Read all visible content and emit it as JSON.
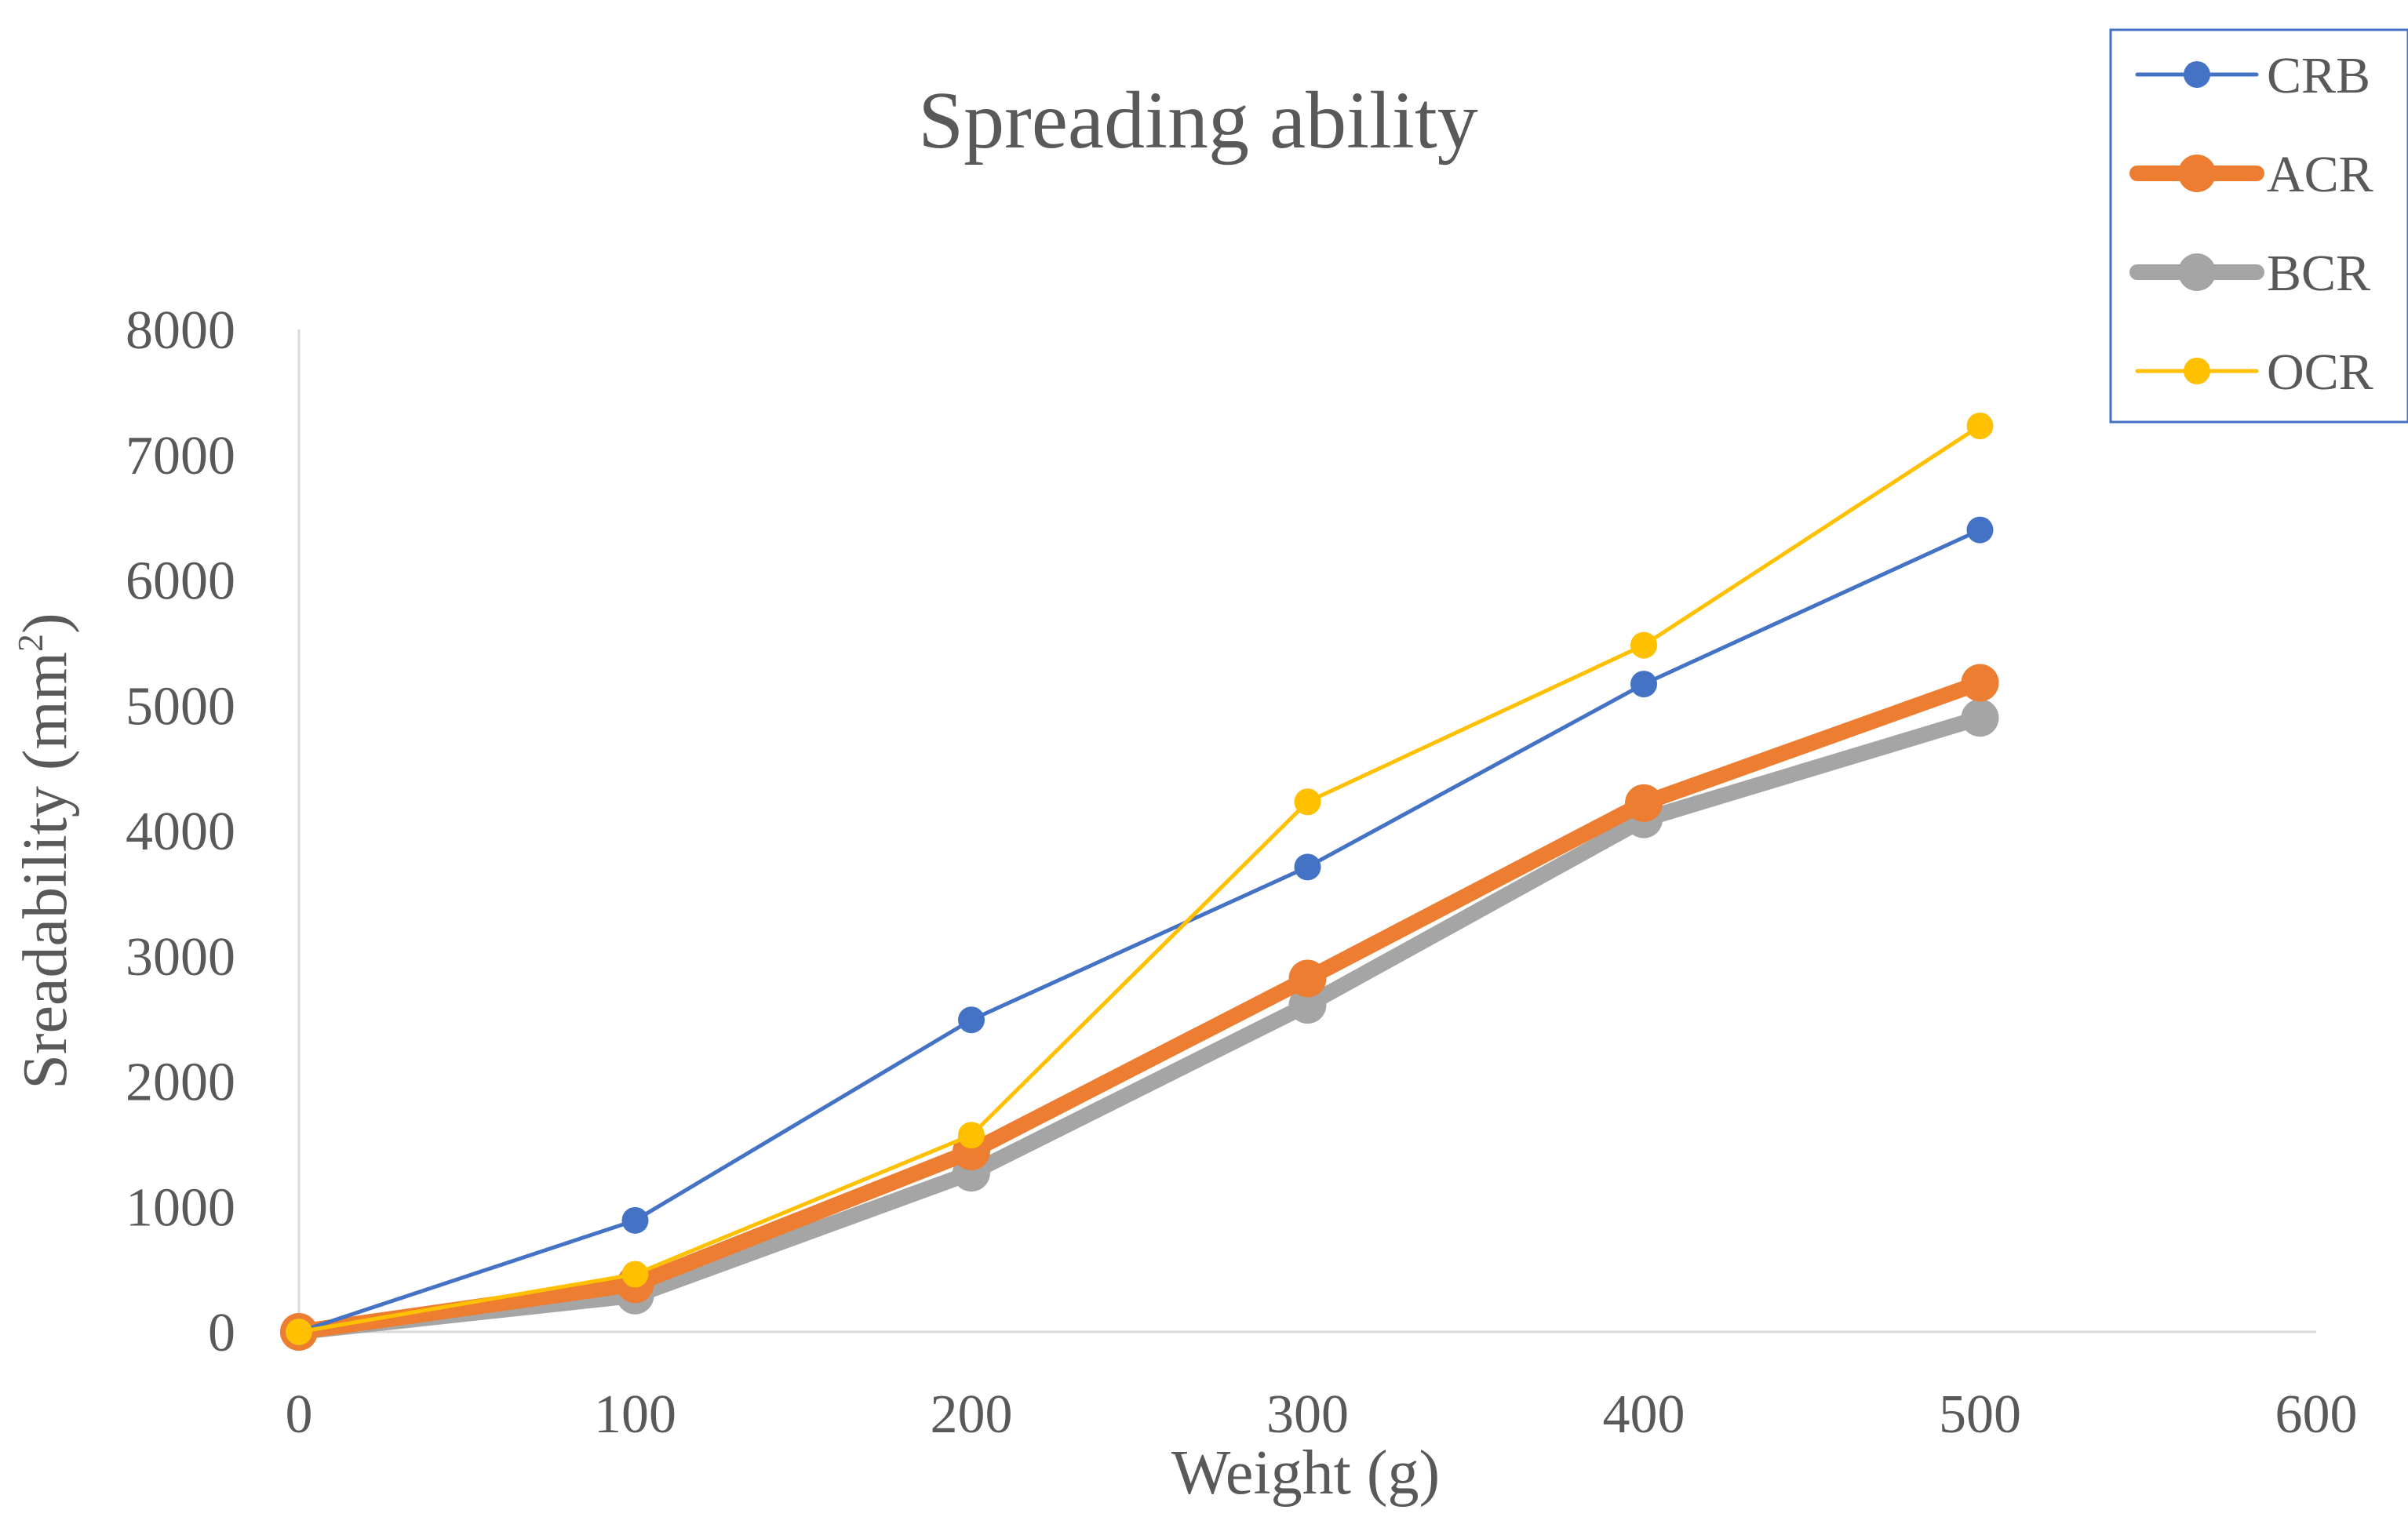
{
  "chart_data": {
    "type": "line",
    "title": "Spreading ability",
    "xlabel": "Weight (g)",
    "ylabel": "Sreadability (mm",
    "ylabel_sup": "2",
    "ylabel_suffix": ")",
    "xlim": [
      0,
      600
    ],
    "ylim": [
      0,
      8000
    ],
    "x_ticks": [
      0,
      100,
      200,
      300,
      400,
      500,
      600
    ],
    "y_ticks": [
      0,
      1000,
      2000,
      3000,
      4000,
      5000,
      6000,
      7000,
      8000
    ],
    "x_tick_labels": [
      "0",
      "100",
      "200",
      "300",
      "400",
      "500",
      "600"
    ],
    "y_tick_labels": [
      "0",
      "1000",
      "2000",
      "3000",
      "4000",
      "5000",
      "6000",
      "7000",
      "8000"
    ],
    "grid": false,
    "legend_position": "top-right",
    "x": [
      0,
      100,
      200,
      300,
      400,
      500
    ],
    "series": [
      {
        "name": "CRB",
        "color": "#4472C4",
        "style": "thin",
        "values": [
          0,
          890,
          2490,
          3710,
          5170,
          6400
        ]
      },
      {
        "name": "ACR",
        "color": "#ED7D31",
        "style": "thick",
        "values": [
          0,
          380,
          1440,
          2820,
          4220,
          5180
        ]
      },
      {
        "name": "BCR",
        "color": "#A5A5A5",
        "style": "thick",
        "values": [
          0,
          290,
          1270,
          2610,
          4090,
          4900
        ]
      },
      {
        "name": "OCR",
        "color": "#FFC000",
        "style": "thin",
        "values": [
          0,
          460,
          1570,
          4230,
          5480,
          7230
        ]
      }
    ]
  }
}
